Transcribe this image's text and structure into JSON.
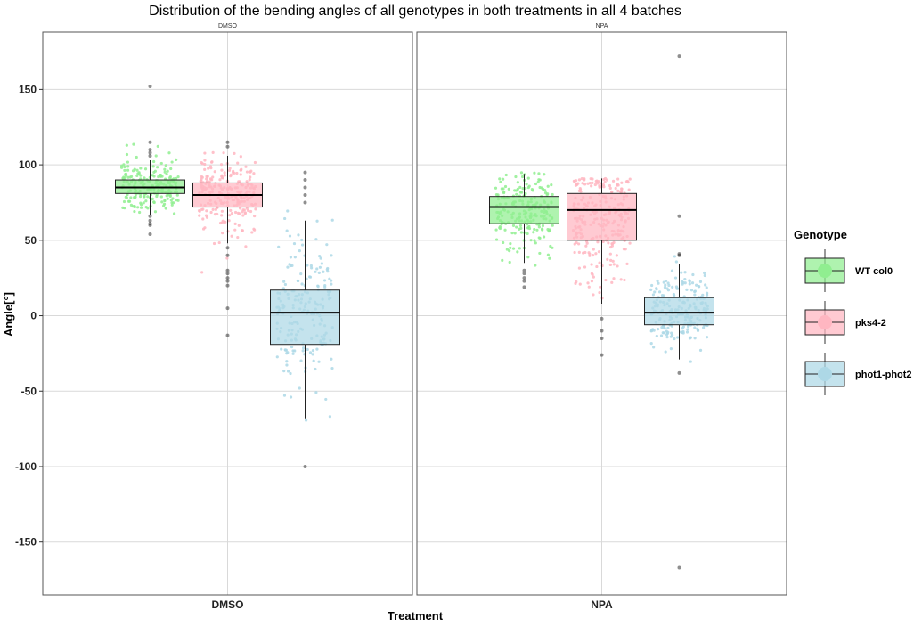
{
  "chart_data": {
    "type": "box",
    "title": "Distribution of the bending angles of all genotypes in both treatments in all 4 batches",
    "xlabel": "Treatment",
    "ylabel": "Angle[°]",
    "ylim": [
      -185,
      188
    ],
    "yticks": [
      -150,
      -100,
      -50,
      0,
      50,
      100,
      150
    ],
    "facets": [
      "DMSO",
      "NPA"
    ],
    "categories": [
      "DMSO",
      "NPA"
    ],
    "grid": true,
    "legend": {
      "title": "Genotype",
      "position": "right"
    },
    "series": [
      {
        "name": "WT col0",
        "color": "#90EE90",
        "boxes": {
          "DMSO": {
            "q1": 81,
            "median": 85,
            "q3": 90,
            "whisker_low": 67,
            "whisker_high": 103,
            "outliers": [
              152,
              115,
              110,
              108,
              106,
              66,
              63,
              61,
              60,
              54
            ],
            "jitter": {
              "center": 86,
              "spread": 9,
              "min": 55,
              "max": 115,
              "n": 210
            }
          },
          "NPA": {
            "q1": 61,
            "median": 72,
            "q3": 79,
            "whisker_low": 35,
            "whisker_high": 94,
            "outliers": [
              30,
              28,
              25,
              23,
              19
            ],
            "jitter": {
              "center": 70,
              "spread": 14,
              "min": 20,
              "max": 95,
              "n": 220
            }
          }
        }
      },
      {
        "name": "pks4-2",
        "color": "#FFB6C1",
        "boxes": {
          "DMSO": {
            "q1": 72,
            "median": 80,
            "q3": 88,
            "whisker_low": 48,
            "whisker_high": 106,
            "outliers": [
              115,
              112,
              45,
              40,
              30,
              28,
              25,
              23,
              20,
              5,
              -13
            ],
            "jitter": {
              "center": 80,
              "spread": 12,
              "min": -10,
              "max": 115,
              "n": 240
            }
          },
          "NPA": {
            "q1": 50,
            "median": 70,
            "q3": 81,
            "whisker_low": 8,
            "whisker_high": 91,
            "outliers": [
              -2,
              -10,
              -15,
              -26
            ],
            "jitter": {
              "center": 64,
              "spread": 20,
              "min": -26,
              "max": 91,
              "n": 260
            }
          }
        }
      },
      {
        "name": "phot1-phot2",
        "color": "#ADD8E6",
        "boxes": {
          "DMSO": {
            "q1": -19,
            "median": 2,
            "q3": 17,
            "whisker_low": -68,
            "whisker_high": 63,
            "outliers": [
              95,
              90,
              85,
              80,
              75,
              -100
            ],
            "jitter": {
              "center": 0,
              "spread": 28,
              "min": -70,
              "max": 90,
              "n": 200
            }
          },
          "NPA": {
            "q1": -6,
            "median": 2,
            "q3": 12,
            "whisker_low": -29,
            "whisker_high": 34,
            "outliers": [
              66,
              41,
              40,
              -38,
              172,
              -167
            ],
            "jitter": {
              "center": 3,
              "spread": 12,
              "min": -38,
              "max": 66,
              "n": 220
            }
          }
        }
      }
    ]
  }
}
